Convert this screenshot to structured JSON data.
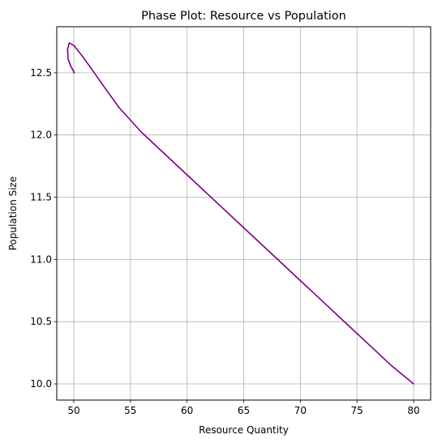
{
  "chart_data": {
    "type": "line",
    "title": "Phase Plot: Resource vs Population",
    "xlabel": "Resource Quantity",
    "ylabel": "Population Size",
    "xlim": [
      48.5,
      81.5
    ],
    "ylim": [
      9.87,
      12.87
    ],
    "x_ticks": [
      50,
      55,
      60,
      65,
      70,
      75,
      80
    ],
    "y_ticks": [
      10.0,
      10.5,
      11.0,
      11.5,
      12.0,
      12.5
    ],
    "x_tick_labels": [
      "50",
      "55",
      "60",
      "65",
      "70",
      "75",
      "80"
    ],
    "y_tick_labels": [
      "10.0",
      "10.5",
      "11.0",
      "11.5",
      "12.0",
      "12.5"
    ],
    "grid": true,
    "line_color": "#800080",
    "series": [
      {
        "x": [
          80.0,
          78.0,
          76.0,
          74.0,
          72.0,
          70.0,
          68.0,
          66.0,
          64.0,
          62.0,
          60.0,
          58.0,
          56.0,
          54.0,
          52.5,
          51.5,
          50.7,
          50.0,
          49.6,
          49.45,
          49.5,
          49.75,
          50.0,
          50.05,
          50.0
        ],
        "y": [
          10.0,
          10.15,
          10.32,
          10.49,
          10.66,
          10.83,
          11.0,
          11.17,
          11.34,
          11.51,
          11.68,
          11.85,
          12.02,
          12.22,
          12.41,
          12.54,
          12.64,
          12.72,
          12.74,
          12.69,
          12.61,
          12.55,
          12.51,
          12.5,
          12.5
        ]
      }
    ]
  }
}
